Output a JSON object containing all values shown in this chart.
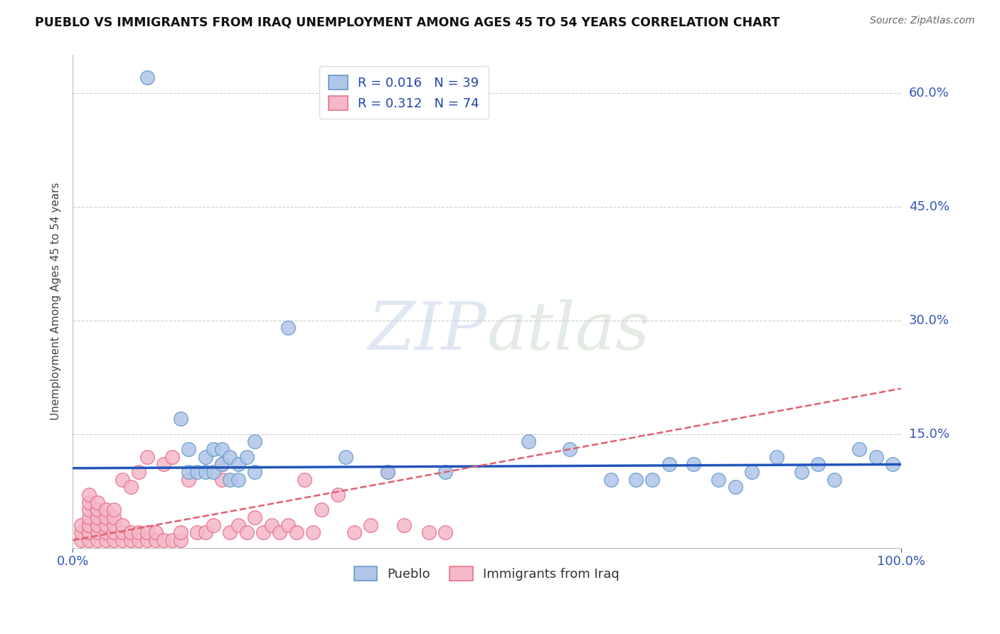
{
  "title": "PUEBLO VS IMMIGRANTS FROM IRAQ UNEMPLOYMENT AMONG AGES 45 TO 54 YEARS CORRELATION CHART",
  "source": "Source: ZipAtlas.com",
  "ylabel": "Unemployment Among Ages 45 to 54 years",
  "xlim": [
    0,
    100
  ],
  "ylim": [
    0,
    65
  ],
  "x_tick_labels": [
    "0.0%",
    "100.0%"
  ],
  "x_tick_positions": [
    0,
    100
  ],
  "y_tick_labels": [
    "15.0%",
    "30.0%",
    "45.0%",
    "60.0%"
  ],
  "y_tick_positions": [
    15,
    30,
    45,
    60
  ],
  "watermark_top": "ZIP",
  "watermark_bot": "atlas",
  "pueblo_color": "#aec6e8",
  "pueblo_edge_color": "#6699cc",
  "iraq_color": "#f5b8c8",
  "iraq_edge_color": "#e8708a",
  "pueblo_R": 0.016,
  "pueblo_N": 39,
  "iraq_R": 0.312,
  "iraq_N": 74,
  "legend_label_pueblo": "Pueblo",
  "legend_label_iraq": "Immigrants from Iraq",
  "pueblo_x": [
    9,
    13,
    14,
    14,
    15,
    16,
    16,
    17,
    17,
    18,
    18,
    19,
    19,
    20,
    20,
    21,
    22,
    22,
    26,
    33,
    38,
    45,
    55,
    60,
    65,
    68,
    70,
    72,
    75,
    78,
    80,
    82,
    85,
    88,
    90,
    92,
    95,
    97,
    99
  ],
  "pueblo_y": [
    62,
    17,
    10,
    13,
    10,
    10,
    12,
    10,
    13,
    11,
    13,
    9,
    12,
    11,
    9,
    12,
    14,
    10,
    29,
    12,
    10,
    10,
    14,
    13,
    9,
    9,
    9,
    11,
    11,
    9,
    8,
    10,
    12,
    10,
    11,
    9,
    13,
    12,
    11
  ],
  "iraq_x": [
    1,
    1,
    1,
    2,
    2,
    2,
    2,
    2,
    2,
    2,
    2,
    2,
    3,
    3,
    3,
    3,
    3,
    3,
    4,
    4,
    4,
    4,
    4,
    5,
    5,
    5,
    5,
    5,
    6,
    6,
    6,
    6,
    7,
    7,
    7,
    8,
    8,
    8,
    9,
    9,
    9,
    10,
    10,
    11,
    11,
    12,
    12,
    13,
    13,
    14,
    15,
    16,
    17,
    18,
    18,
    19,
    20,
    21,
    22,
    23,
    24,
    25,
    26,
    27,
    28,
    29,
    30,
    32,
    34,
    36,
    38,
    40,
    43,
    45
  ],
  "iraq_y": [
    1,
    2,
    3,
    1,
    2,
    2,
    3,
    3,
    4,
    5,
    6,
    7,
    1,
    2,
    3,
    4,
    5,
    6,
    1,
    2,
    3,
    4,
    5,
    1,
    2,
    3,
    4,
    5,
    1,
    2,
    3,
    9,
    1,
    2,
    8,
    1,
    2,
    10,
    1,
    2,
    12,
    1,
    2,
    1,
    11,
    1,
    12,
    1,
    2,
    9,
    2,
    2,
    3,
    9,
    11,
    2,
    3,
    2,
    4,
    2,
    3,
    2,
    3,
    2,
    9,
    2,
    5,
    7,
    2,
    3,
    10,
    3,
    2,
    2
  ],
  "pueblo_trendline_x": [
    0,
    100
  ],
  "pueblo_trendline_y": [
    10.5,
    11.0
  ],
  "iraq_trendline_x": [
    0,
    100
  ],
  "iraq_trendline_y": [
    1.0,
    21.0
  ]
}
